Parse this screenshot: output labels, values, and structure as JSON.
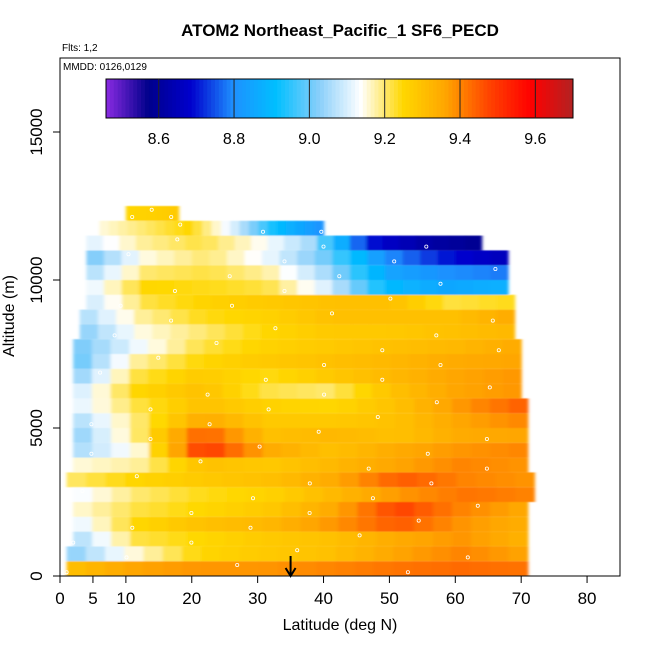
{
  "chart_data": {
    "type": "heatmap",
    "title": "ATOM2 Northeast_Pacific_1 SF6_PECD",
    "flights_label": "Flts: 1,2",
    "dates_label": "MMDD: 0126,0129",
    "xlabel": "Latitude (deg N)",
    "ylabel": "Altitude (m)",
    "xlim": [
      0,
      85
    ],
    "ylim": [
      0,
      17500
    ],
    "xticks": [
      0,
      5,
      10,
      20,
      30,
      40,
      50,
      60,
      70,
      80
    ],
    "yticks": [
      0,
      5000,
      10000,
      15000
    ],
    "colorbar": {
      "range": [
        8.46,
        9.7
      ],
      "ticks": [
        8.6,
        8.8,
        9.0,
        9.2,
        9.4,
        9.6
      ],
      "colors": [
        "#8a2be2",
        "#00008b",
        "#0000cd",
        "#1e90ff",
        "#00bfff",
        "#87cefa",
        "#ffffff",
        "#ffd700",
        "#ffa500",
        "#ff4500",
        "#ff0000",
        "#b22222"
      ]
    },
    "marker_latitude": 35,
    "layers": [
      {
        "alt": 250,
        "lat": [
          1,
          71
        ],
        "values": [
          9.3,
          9.36,
          9.38,
          9.38,
          9.4,
          9.42,
          9.43,
          9.42
        ]
      },
      {
        "alt": 750,
        "lat": [
          1,
          71
        ],
        "values": [
          9.02,
          9.15,
          9.25,
          9.28,
          9.3,
          9.36,
          9.4,
          9.36
        ]
      },
      {
        "alt": 1250,
        "lat": [
          2,
          71
        ],
        "values": [
          9.05,
          9.22,
          9.25,
          9.28,
          9.3,
          9.35,
          9.38,
          9.33
        ]
      },
      {
        "alt": 1750,
        "lat": [
          2,
          71
        ],
        "values": [
          9.1,
          9.25,
          9.3,
          9.32,
          9.38,
          9.45,
          9.38,
          9.34
        ]
      },
      {
        "alt": 2250,
        "lat": [
          2,
          71
        ],
        "values": [
          9.15,
          9.22,
          9.25,
          9.28,
          9.35,
          9.48,
          9.4,
          9.35
        ]
      },
      {
        "alt": 2750,
        "lat": [
          2,
          72
        ],
        "values": [
          9.12,
          9.2,
          9.24,
          9.26,
          9.32,
          9.38,
          9.42,
          9.4
        ]
      },
      {
        "alt": 3250,
        "lat": [
          1,
          72
        ],
        "values": [
          9.2,
          9.25,
          9.28,
          9.3,
          9.35,
          9.45,
          9.4,
          9.38
        ]
      },
      {
        "alt": 3750,
        "lat": [
          2,
          71
        ],
        "values": [
          9.15,
          9.18,
          9.3,
          9.28,
          9.32,
          9.36,
          9.4,
          9.38
        ]
      },
      {
        "alt": 4250,
        "lat": [
          2,
          71
        ],
        "values": [
          9.05,
          9.15,
          9.5,
          9.35,
          9.3,
          9.35,
          9.38,
          9.4
        ]
      },
      {
        "alt": 4750,
        "lat": [
          2,
          71
        ],
        "values": [
          9.02,
          9.2,
          9.45,
          9.3,
          9.32,
          9.3,
          9.35,
          9.36
        ]
      },
      {
        "alt": 5250,
        "lat": [
          2,
          71
        ],
        "values": [
          9.05,
          9.2,
          9.35,
          9.28,
          9.28,
          9.3,
          9.36,
          9.4
        ]
      },
      {
        "alt": 5750,
        "lat": [
          2,
          71
        ],
        "values": [
          9.1,
          9.22,
          9.3,
          9.26,
          9.25,
          9.3,
          9.38,
          9.45
        ]
      },
      {
        "alt": 6250,
        "lat": [
          2,
          70
        ],
        "values": [
          9.08,
          9.25,
          9.3,
          9.22,
          9.2,
          9.3,
          9.36,
          9.38
        ]
      },
      {
        "alt": 6750,
        "lat": [
          2,
          70
        ],
        "values": [
          9.02,
          9.22,
          9.28,
          9.24,
          9.28,
          9.32,
          9.36,
          9.38
        ]
      },
      {
        "alt": 7250,
        "lat": [
          2,
          70
        ],
        "values": [
          8.98,
          9.18,
          9.25,
          9.28,
          9.3,
          9.32,
          9.35,
          9.36
        ]
      },
      {
        "alt": 7750,
        "lat": [
          2,
          70
        ],
        "values": [
          9.0,
          9.12,
          9.22,
          9.26,
          9.28,
          9.3,
          9.32,
          9.35
        ]
      },
      {
        "alt": 8250,
        "lat": [
          3,
          69
        ],
        "values": [
          9.02,
          9.15,
          9.2,
          9.25,
          9.28,
          9.28,
          9.3,
          9.32
        ]
      },
      {
        "alt": 8750,
        "lat": [
          3,
          69
        ],
        "values": [
          9.05,
          9.18,
          9.24,
          9.26,
          9.3,
          9.3,
          9.3,
          9.35
        ]
      },
      {
        "alt": 9250,
        "lat": [
          4,
          69
        ],
        "values": [
          9.08,
          9.22,
          9.26,
          9.28,
          9.3,
          9.3,
          9.22,
          9.24
        ]
      },
      {
        "alt": 9750,
        "lat": [
          4,
          68
        ],
        "values": [
          9.1,
          9.25,
          9.24,
          9.22,
          9.1,
          8.9,
          8.85,
          8.88
        ]
      },
      {
        "alt": 10250,
        "lat": [
          4,
          68
        ],
        "values": [
          9.05,
          9.2,
          9.22,
          9.18,
          9.05,
          8.85,
          8.8,
          8.78
        ]
      },
      {
        "alt": 10750,
        "lat": [
          4,
          68
        ],
        "values": [
          9.0,
          9.15,
          9.2,
          9.12,
          9.0,
          8.8,
          8.7,
          8.65
        ]
      },
      {
        "alt": 11250,
        "lat": [
          4,
          64
        ],
        "values": [
          9.1,
          9.18,
          9.22,
          9.15,
          9.05,
          8.7,
          8.62,
          8.58
        ]
      },
      {
        "alt": 11750,
        "lat": [
          6,
          40
        ],
        "values": [
          9.15,
          9.2,
          9.25,
          9.1,
          8.9,
          8.8
        ]
      },
      {
        "alt": 12250,
        "lat": [
          10,
          18
        ],
        "values": [
          9.25,
          9.28
        ]
      }
    ]
  }
}
